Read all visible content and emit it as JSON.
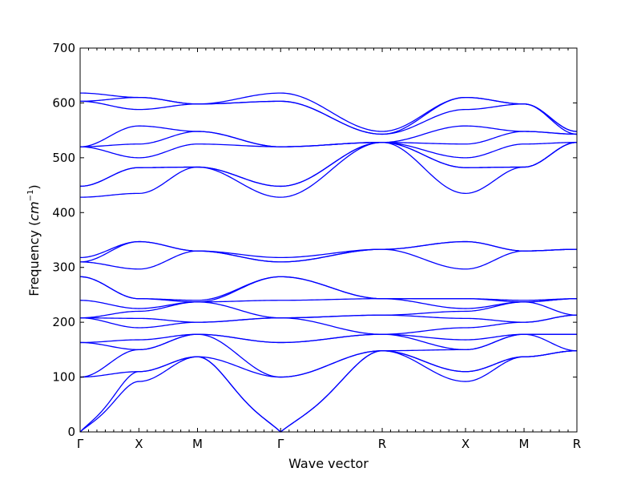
{
  "chart_data": {
    "type": "line",
    "title": "",
    "xlabel": "Wave vector",
    "ylabel_prefix": "Frequency (",
    "ylabel_unit_base": "cm",
    "ylabel_unit_exp": "−1",
    "ylabel_suffix": ")",
    "ylim": [
      0,
      700
    ],
    "y_ticks": [
      0,
      100,
      200,
      300,
      400,
      500,
      600,
      700
    ],
    "x_segments": [
      {
        "name": "Γ",
        "pos": 0.0
      },
      {
        "name": "X",
        "pos": 0.1183
      },
      {
        "name": "M",
        "pos": 0.2363
      },
      {
        "name": "Γ",
        "pos": 0.4036
      },
      {
        "name": "R",
        "pos": 0.6081
      },
      {
        "name": "X",
        "pos": 0.7758
      },
      {
        "name": "M",
        "pos": 0.8936
      },
      {
        "name": "R",
        "pos": 1.0
      }
    ],
    "grid": false,
    "line_color": "#0000ff",
    "series_shape": "bands: frequency values at each high-symmetry point (Γ, X, M, Γ, R, X, M, R)",
    "series": [
      {
        "values": [
          0,
          92,
          137,
          0,
          148,
          92,
          137,
          148
        ]
      },
      {
        "values": [
          0,
          110,
          137,
          0,
          148,
          110,
          137,
          148
        ]
      },
      {
        "values": [
          100,
          110,
          137,
          100,
          148,
          110,
          137,
          148
        ]
      },
      {
        "values": [
          100,
          150,
          178,
          100,
          148,
          150,
          178,
          148
        ]
      },
      {
        "values": [
          163,
          150,
          178,
          163,
          178,
          150,
          178,
          178
        ]
      },
      {
        "values": [
          163,
          168,
          178,
          163,
          178,
          168,
          178,
          178
        ]
      },
      {
        "values": [
          208,
          190,
          200,
          208,
          178,
          190,
          200,
          213
        ]
      },
      {
        "values": [
          208,
          207,
          200,
          208,
          213,
          207,
          200,
          213
        ]
      },
      {
        "values": [
          208,
          220,
          237,
          208,
          213,
          220,
          237,
          213
        ]
      },
      {
        "values": [
          240,
          225,
          237,
          240,
          243,
          225,
          237,
          243
        ]
      },
      {
        "values": [
          283,
          243,
          237,
          283,
          243,
          243,
          237,
          243
        ]
      },
      {
        "values": [
          283,
          243,
          240,
          283,
          243,
          243,
          240,
          243
        ]
      },
      {
        "values": [
          310,
          297,
          330,
          310,
          333,
          297,
          330,
          333
        ]
      },
      {
        "values": [
          310,
          347,
          330,
          310,
          333,
          347,
          330,
          333
        ]
      },
      {
        "values": [
          318,
          347,
          330,
          318,
          333,
          347,
          330,
          333
        ]
      },
      {
        "values": [
          428,
          435,
          483,
          428,
          528,
          435,
          483,
          528
        ]
      },
      {
        "values": [
          448,
          482,
          483,
          448,
          528,
          482,
          483,
          528
        ]
      },
      {
        "values": [
          448,
          482,
          483,
          448,
          528,
          482,
          483,
          528
        ]
      },
      {
        "values": [
          520,
          500,
          525,
          520,
          528,
          500,
          525,
          528
        ]
      },
      {
        "values": [
          520,
          525,
          548,
          520,
          528,
          525,
          548,
          543
        ]
      },
      {
        "values": [
          520,
          558,
          548,
          520,
          528,
          558,
          548,
          543
        ]
      },
      {
        "values": [
          603,
          588,
          598,
          603,
          543,
          588,
          598,
          543
        ]
      },
      {
        "values": [
          603,
          610,
          598,
          603,
          543,
          610,
          598,
          548
        ]
      },
      {
        "values": [
          618,
          610,
          598,
          618,
          548,
          610,
          598,
          548
        ]
      }
    ]
  }
}
